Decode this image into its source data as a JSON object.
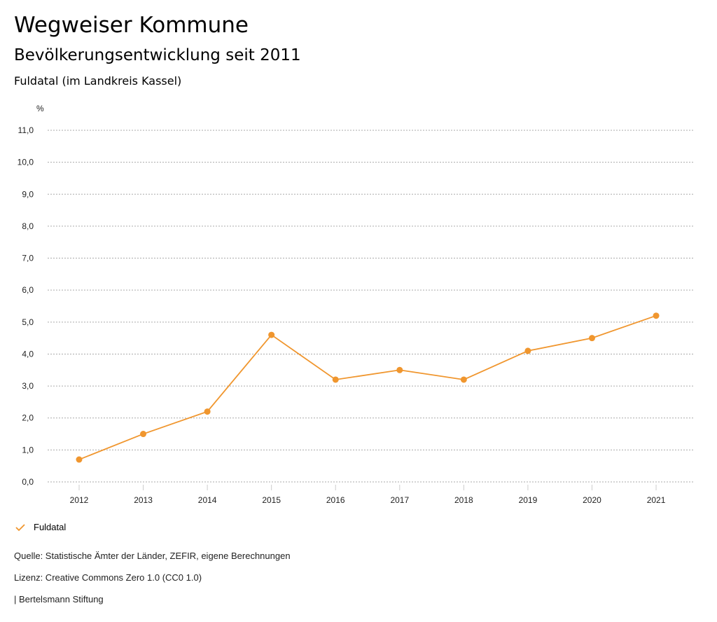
{
  "header": {
    "title": "Wegweiser Kommune",
    "subtitle": "Bevölkerungsentwicklung seit 2011",
    "region": "Fuldatal (im Landkreis Kassel)"
  },
  "chart_data": {
    "type": "line",
    "title": "Bevölkerungsentwicklung seit 2011",
    "ylabel": "%",
    "xlabel": "",
    "ylim": [
      0,
      11
    ],
    "yticks": [
      "0,0",
      "1,0",
      "2,0",
      "3,0",
      "4,0",
      "5,0",
      "6,0",
      "7,0",
      "8,0",
      "9,0",
      "10,0",
      "11,0"
    ],
    "categories": [
      "2012",
      "2013",
      "2014",
      "2015",
      "2016",
      "2017",
      "2018",
      "2019",
      "2020",
      "2021"
    ],
    "series": [
      {
        "name": "Fuldatal",
        "color": "#f0962e",
        "values": [
          0.7,
          1.5,
          2.2,
          4.6,
          3.2,
          3.5,
          3.2,
          4.1,
          4.5,
          5.2
        ]
      }
    ],
    "grid": true,
    "legend_position": "bottom-left"
  },
  "footer": {
    "source": "Quelle: Statistische Ämter der Länder, ZEFIR, eigene Berechnungen",
    "license": "Lizenz: Creative Commons Zero 1.0 (CC0 1.0)",
    "publisher": "| Bertelsmann Stiftung"
  }
}
